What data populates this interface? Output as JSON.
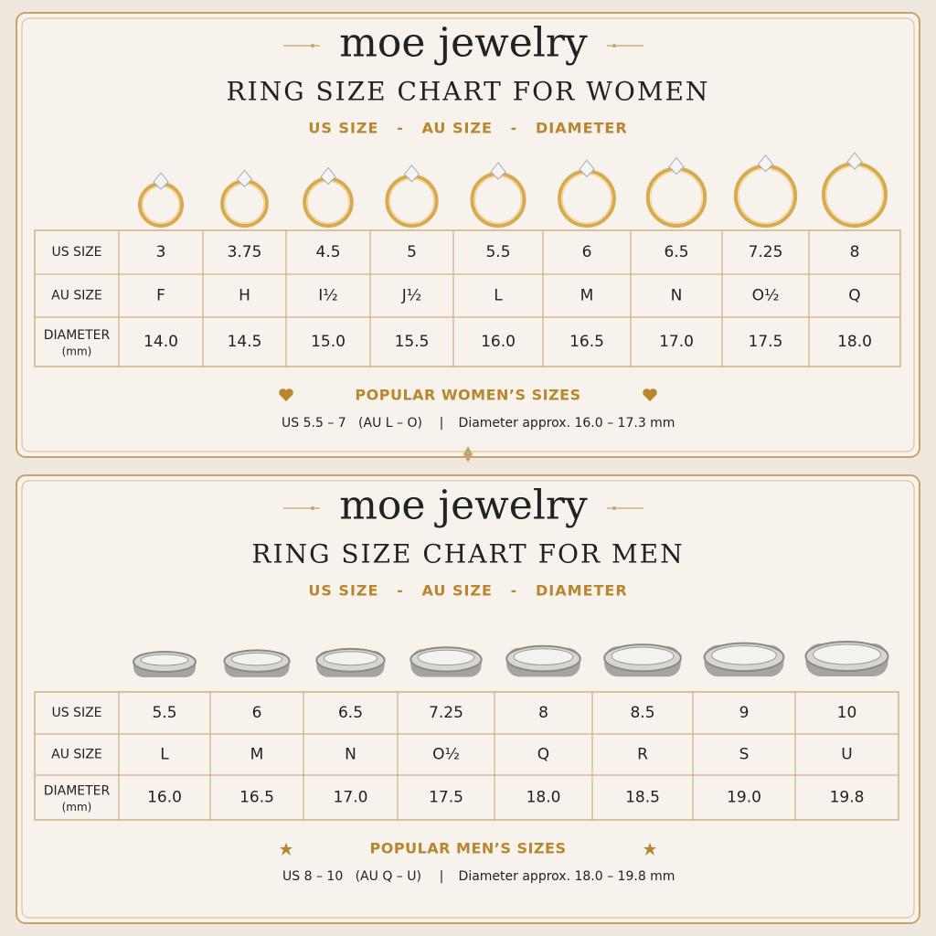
{
  "women": {
    "brand": "moe jewelry",
    "title": "RING SIZE CHART FOR WOMEN",
    "subtitle": "US SIZE   -   AU SIZE   -   DIAMETER",
    "row_headers": [
      "US SIZE",
      "AU SIZE",
      "DIAMETER",
      "(mm)"
    ],
    "table": {
      "rows": [
        [
          "3",
          "3.75",
          "4.5",
          "5",
          "5.5",
          "6",
          "6.5",
          "7.25",
          "8"
        ],
        [
          "F",
          "H",
          "I½",
          "J½",
          "L",
          "M",
          "N",
          "O½",
          "Q"
        ],
        [
          "14.0",
          "14.5",
          "15.0",
          "15.5",
          "16.0",
          "16.5",
          "17.0",
          "17.5",
          "18.0"
        ]
      ]
    },
    "popular": {
      "heading": "POPULAR WOMEN’S SIZES",
      "range": "US 5.5 – 7   (AU L – O)",
      "separator": "|",
      "diameter": "Diameter approx. 16.0 – 17.3 mm"
    }
  },
  "men": {
    "brand": "moe jewelry",
    "title": "RING SIZE CHART FOR MEN",
    "subtitle": "US SIZE   -   AU SIZE   -   DIAMETER",
    "row_headers": [
      "US SIZE",
      "AU SIZE",
      "DIAMETER",
      "(mm)"
    ],
    "table": {
      "rows": [
        [
          "5.5",
          "6",
          "6.5",
          "7.25",
          "8",
          "8.5",
          "9",
          "10"
        ],
        [
          "L",
          "M",
          "N",
          "O½",
          "Q",
          "R",
          "S",
          "U"
        ],
        [
          "16.0",
          "16.5",
          "17.0",
          "17.5",
          "18.0",
          "18.5",
          "19.0",
          "19.8"
        ]
      ]
    },
    "popular": {
      "heading": "POPULAR MEN’S SIZES",
      "range": "US 8 – 10   (AU Q – U)",
      "separator": "|",
      "diameter": "Diameter approx. 18.0 – 19.8 mm"
    }
  }
}
